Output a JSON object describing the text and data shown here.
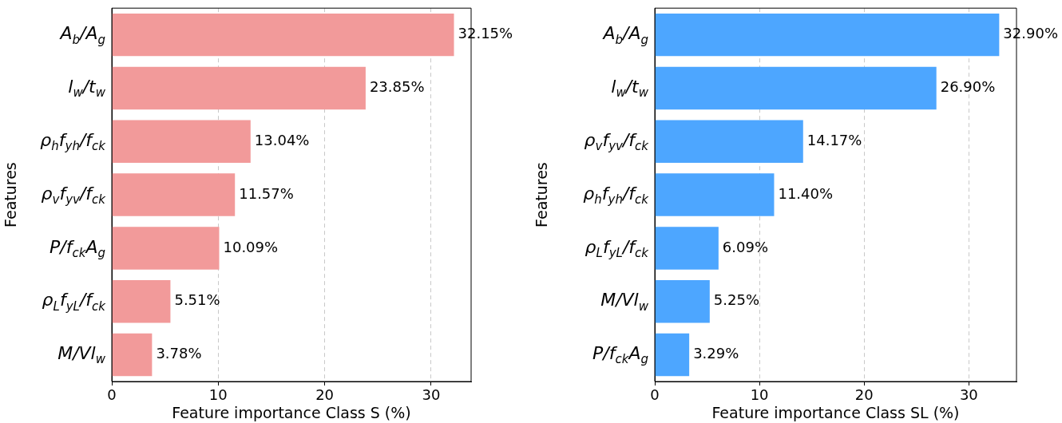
{
  "chart_data": [
    {
      "type": "bar",
      "orientation": "horizontal",
      "xlabel": "Feature importance Class S (%)",
      "ylabel": "Features",
      "categories": [
        "A$_{b}$/A$_{g}$",
        "l$_{w}$/t$_{w}$",
        "ρ$_{h}$f$_{yh}$/f$_{ck}$",
        "ρ$_{v}$f$_{yv}$/f$_{ck}$",
        "P/f$_{ck}$A$_{g}$",
        "ρ$_{L}$f$_{yL}$/f$_{ck}$",
        "M/Vl$_{w}$"
      ],
      "values": [
        32.15,
        23.85,
        13.04,
        11.57,
        10.09,
        5.51,
        3.78
      ],
      "value_labels": [
        "32.15%",
        "23.85%",
        "13.04%",
        "11.57%",
        "10.09%",
        "5.51%",
        "3.78%"
      ],
      "color": "#f29a9a",
      "xlim": [
        0,
        33.76
      ],
      "xticks": [
        0,
        10,
        20,
        30
      ],
      "grid": "x"
    },
    {
      "type": "bar",
      "orientation": "horizontal",
      "xlabel": "Feature importance Class SL (%)",
      "ylabel": "Features",
      "categories": [
        "A$_{b}$/A$_{g}$",
        "l$_{w}$/t$_{w}$",
        "ρ$_{v}$f$_{yv}$/f$_{ck}$",
        "ρ$_{h}$f$_{yh}$/f$_{ck}$",
        "ρ$_{L}$f$_{yL}$/f$_{ck}$",
        "M/Vl$_{w}$",
        "P/f$_{ck}$A$_{g}$"
      ],
      "values": [
        32.9,
        26.9,
        14.17,
        11.4,
        6.09,
        5.25,
        3.29
      ],
      "value_labels": [
        "32.90%",
        "26.90%",
        "14.17%",
        "11.40%",
        "6.09%",
        "5.25%",
        "3.29%"
      ],
      "color": "#4da6ff",
      "xlim": [
        0,
        34.55
      ],
      "xticks": [
        0,
        10,
        20,
        30
      ],
      "grid": "x"
    }
  ]
}
